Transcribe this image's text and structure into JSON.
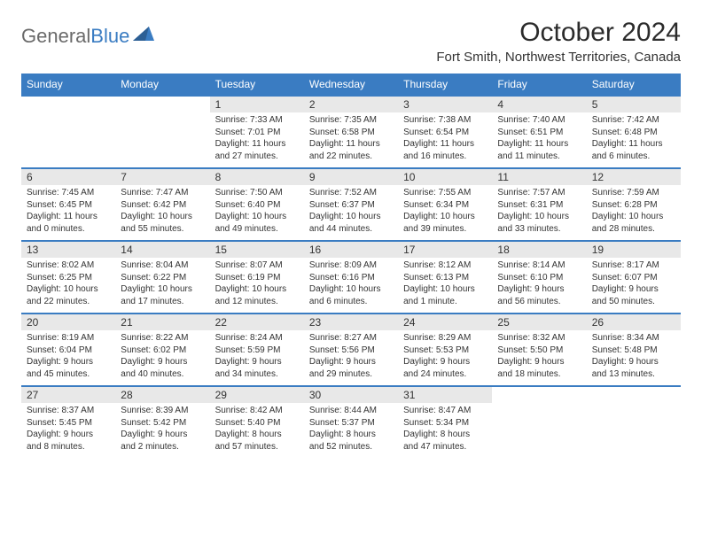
{
  "logo": {
    "text1": "General",
    "text2": "Blue"
  },
  "title": "October 2024",
  "location": "Fort Smith, Northwest Territories, Canada",
  "header_bg": "#3a7cc2",
  "weekdays": [
    "Sunday",
    "Monday",
    "Tuesday",
    "Wednesday",
    "Thursday",
    "Friday",
    "Saturday"
  ],
  "weeks": [
    {
      "days": [
        null,
        null,
        {
          "n": "1",
          "sunrise": "Sunrise: 7:33 AM",
          "sunset": "Sunset: 7:01 PM",
          "daylight": "Daylight: 11 hours and 27 minutes."
        },
        {
          "n": "2",
          "sunrise": "Sunrise: 7:35 AM",
          "sunset": "Sunset: 6:58 PM",
          "daylight": "Daylight: 11 hours and 22 minutes."
        },
        {
          "n": "3",
          "sunrise": "Sunrise: 7:38 AM",
          "sunset": "Sunset: 6:54 PM",
          "daylight": "Daylight: 11 hours and 16 minutes."
        },
        {
          "n": "4",
          "sunrise": "Sunrise: 7:40 AM",
          "sunset": "Sunset: 6:51 PM",
          "daylight": "Daylight: 11 hours and 11 minutes."
        },
        {
          "n": "5",
          "sunrise": "Sunrise: 7:42 AM",
          "sunset": "Sunset: 6:48 PM",
          "daylight": "Daylight: 11 hours and 6 minutes."
        }
      ]
    },
    {
      "days": [
        {
          "n": "6",
          "sunrise": "Sunrise: 7:45 AM",
          "sunset": "Sunset: 6:45 PM",
          "daylight": "Daylight: 11 hours and 0 minutes."
        },
        {
          "n": "7",
          "sunrise": "Sunrise: 7:47 AM",
          "sunset": "Sunset: 6:42 PM",
          "daylight": "Daylight: 10 hours and 55 minutes."
        },
        {
          "n": "8",
          "sunrise": "Sunrise: 7:50 AM",
          "sunset": "Sunset: 6:40 PM",
          "daylight": "Daylight: 10 hours and 49 minutes."
        },
        {
          "n": "9",
          "sunrise": "Sunrise: 7:52 AM",
          "sunset": "Sunset: 6:37 PM",
          "daylight": "Daylight: 10 hours and 44 minutes."
        },
        {
          "n": "10",
          "sunrise": "Sunrise: 7:55 AM",
          "sunset": "Sunset: 6:34 PM",
          "daylight": "Daylight: 10 hours and 39 minutes."
        },
        {
          "n": "11",
          "sunrise": "Sunrise: 7:57 AM",
          "sunset": "Sunset: 6:31 PM",
          "daylight": "Daylight: 10 hours and 33 minutes."
        },
        {
          "n": "12",
          "sunrise": "Sunrise: 7:59 AM",
          "sunset": "Sunset: 6:28 PM",
          "daylight": "Daylight: 10 hours and 28 minutes."
        }
      ]
    },
    {
      "days": [
        {
          "n": "13",
          "sunrise": "Sunrise: 8:02 AM",
          "sunset": "Sunset: 6:25 PM",
          "daylight": "Daylight: 10 hours and 22 minutes."
        },
        {
          "n": "14",
          "sunrise": "Sunrise: 8:04 AM",
          "sunset": "Sunset: 6:22 PM",
          "daylight": "Daylight: 10 hours and 17 minutes."
        },
        {
          "n": "15",
          "sunrise": "Sunrise: 8:07 AM",
          "sunset": "Sunset: 6:19 PM",
          "daylight": "Daylight: 10 hours and 12 minutes."
        },
        {
          "n": "16",
          "sunrise": "Sunrise: 8:09 AM",
          "sunset": "Sunset: 6:16 PM",
          "daylight": "Daylight: 10 hours and 6 minutes."
        },
        {
          "n": "17",
          "sunrise": "Sunrise: 8:12 AM",
          "sunset": "Sunset: 6:13 PM",
          "daylight": "Daylight: 10 hours and 1 minute."
        },
        {
          "n": "18",
          "sunrise": "Sunrise: 8:14 AM",
          "sunset": "Sunset: 6:10 PM",
          "daylight": "Daylight: 9 hours and 56 minutes."
        },
        {
          "n": "19",
          "sunrise": "Sunrise: 8:17 AM",
          "sunset": "Sunset: 6:07 PM",
          "daylight": "Daylight: 9 hours and 50 minutes."
        }
      ]
    },
    {
      "days": [
        {
          "n": "20",
          "sunrise": "Sunrise: 8:19 AM",
          "sunset": "Sunset: 6:04 PM",
          "daylight": "Daylight: 9 hours and 45 minutes."
        },
        {
          "n": "21",
          "sunrise": "Sunrise: 8:22 AM",
          "sunset": "Sunset: 6:02 PM",
          "daylight": "Daylight: 9 hours and 40 minutes."
        },
        {
          "n": "22",
          "sunrise": "Sunrise: 8:24 AM",
          "sunset": "Sunset: 5:59 PM",
          "daylight": "Daylight: 9 hours and 34 minutes."
        },
        {
          "n": "23",
          "sunrise": "Sunrise: 8:27 AM",
          "sunset": "Sunset: 5:56 PM",
          "daylight": "Daylight: 9 hours and 29 minutes."
        },
        {
          "n": "24",
          "sunrise": "Sunrise: 8:29 AM",
          "sunset": "Sunset: 5:53 PM",
          "daylight": "Daylight: 9 hours and 24 minutes."
        },
        {
          "n": "25",
          "sunrise": "Sunrise: 8:32 AM",
          "sunset": "Sunset: 5:50 PM",
          "daylight": "Daylight: 9 hours and 18 minutes."
        },
        {
          "n": "26",
          "sunrise": "Sunrise: 8:34 AM",
          "sunset": "Sunset: 5:48 PM",
          "daylight": "Daylight: 9 hours and 13 minutes."
        }
      ]
    },
    {
      "days": [
        {
          "n": "27",
          "sunrise": "Sunrise: 8:37 AM",
          "sunset": "Sunset: 5:45 PM",
          "daylight": "Daylight: 9 hours and 8 minutes."
        },
        {
          "n": "28",
          "sunrise": "Sunrise: 8:39 AM",
          "sunset": "Sunset: 5:42 PM",
          "daylight": "Daylight: 9 hours and 2 minutes."
        },
        {
          "n": "29",
          "sunrise": "Sunrise: 8:42 AM",
          "sunset": "Sunset: 5:40 PM",
          "daylight": "Daylight: 8 hours and 57 minutes."
        },
        {
          "n": "30",
          "sunrise": "Sunrise: 8:44 AM",
          "sunset": "Sunset: 5:37 PM",
          "daylight": "Daylight: 8 hours and 52 minutes."
        },
        {
          "n": "31",
          "sunrise": "Sunrise: 8:47 AM",
          "sunset": "Sunset: 5:34 PM",
          "daylight": "Daylight: 8 hours and 47 minutes."
        },
        null,
        null
      ]
    }
  ]
}
